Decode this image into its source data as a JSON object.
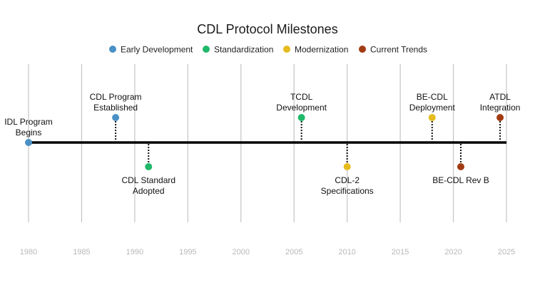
{
  "chart_data": {
    "type": "timeline",
    "title": "CDL Protocol Milestones",
    "x_range": [
      1980,
      2025
    ],
    "ticks": [
      1980,
      1985,
      1990,
      1995,
      2000,
      2005,
      2010,
      2015,
      2020,
      2025
    ],
    "grid": true,
    "legend_position": "top-center",
    "categories": [
      {
        "id": "early",
        "label": "Early Development",
        "color": "#4a90c4"
      },
      {
        "id": "std",
        "label": "Standardization",
        "color": "#1fb86a"
      },
      {
        "id": "mod",
        "label": "Modernization",
        "color": "#e6bb1e"
      },
      {
        "id": "cur",
        "label": "Current Trends",
        "color": "#a23b12"
      }
    ],
    "events": [
      {
        "year": 1980,
        "lines": [
          "IDL Program",
          "Begins"
        ],
        "category": "early",
        "side": "on-axis"
      },
      {
        "year": 1988.2,
        "lines": [
          "CDL Program",
          "Established"
        ],
        "category": "early",
        "side": "above"
      },
      {
        "year": 1991.3,
        "lines": [
          "CDL Standard",
          "Adopted"
        ],
        "category": "std",
        "side": "below"
      },
      {
        "year": 2005.7,
        "lines": [
          "TCDL",
          "Development"
        ],
        "category": "std",
        "side": "above"
      },
      {
        "year": 2010,
        "lines": [
          "CDL-2",
          "Specifications"
        ],
        "category": "mod",
        "side": "below"
      },
      {
        "year": 2018,
        "lines": [
          "BE-CDL",
          "Deployment"
        ],
        "category": "mod",
        "side": "above"
      },
      {
        "year": 2020.7,
        "lines": [
          "BE-CDL Rev B"
        ],
        "category": "cur",
        "side": "below"
      },
      {
        "year": 2024.4,
        "lines": [
          "ATDL",
          "Integration"
        ],
        "category": "cur",
        "side": "above"
      }
    ]
  }
}
